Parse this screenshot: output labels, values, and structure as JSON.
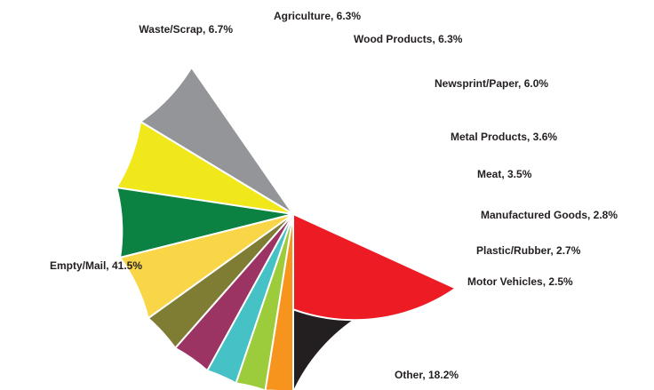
{
  "chart_data": {
    "type": "pie",
    "title": "",
    "start_angle_deg": 0,
    "direction": "clockwise",
    "slices": [
      {
        "label": "Other",
        "text": "Other, 18.2%",
        "value": 18.2,
        "color": "#231f20",
        "label_side": "right"
      },
      {
        "label": "Empty/Mail",
        "text": "Empty/Mail, 41.5%",
        "value": 41.5,
        "color": "#ed1c24",
        "label_side": "left"
      },
      {
        "label": "Waste/Scrap",
        "text": "Waste/Scrap, 6.7%",
        "value": 6.7,
        "color": "#939598",
        "label_side": "left"
      },
      {
        "label": "Agriculture",
        "text": "Agriculture, 6.3%",
        "value": 6.3,
        "color": "#f0e81a",
        "label_side": "right"
      },
      {
        "label": "Wood Products",
        "text": "Wood Products, 6.3%",
        "value": 6.3,
        "color": "#0b8242",
        "label_side": "right"
      },
      {
        "label": "Newsprint/Paper",
        "text": "Newsprint/Paper, 6.0%",
        "value": 6.0,
        "color": "#f9d648",
        "label_side": "right"
      },
      {
        "label": "Metal Products",
        "text": "Metal Products, 3.6%",
        "value": 3.6,
        "color": "#7f7c34",
        "label_side": "right"
      },
      {
        "label": "Meat",
        "text": "Meat, 3.5%",
        "value": 3.5,
        "color": "#9b3462",
        "label_side": "right"
      },
      {
        "label": "Manufactured Goods",
        "text": "Manufactured Goods, 2.8%",
        "value": 2.8,
        "color": "#46c1c6",
        "label_side": "right"
      },
      {
        "label": "Plastic/Rubber",
        "text": "Plastic/Rubber, 2.7%",
        "value": 2.7,
        "color": "#9ccb3b",
        "label_side": "right"
      },
      {
        "label": "Motor Vehicles",
        "text": "Motor Vehicles, 2.5%",
        "value": 2.5,
        "color": "#f7941d",
        "label_side": "right"
      }
    ]
  }
}
